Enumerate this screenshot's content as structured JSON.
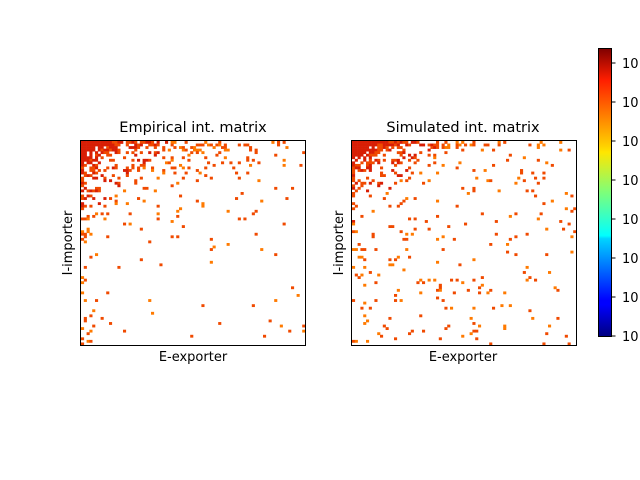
{
  "chart_data": [
    {
      "type": "heatmap",
      "title": "Empirical int. matrix",
      "xlabel": "E-exporter",
      "ylabel": "I-importer",
      "x_ticks": "none",
      "y_ticks": "none",
      "rows": 80,
      "cols": 80,
      "empty_cells": "white",
      "structure": "nested; dense top-left corner, density decays with row and column rank",
      "density_model": {
        "top_left": 0.97,
        "row_scale": 2.6,
        "col_scale": 2.6,
        "background": 0.01
      }
    },
    {
      "type": "heatmap",
      "title": "Simulated int. matrix",
      "xlabel": "E-exporter",
      "ylabel": "I-importer",
      "x_ticks": "none",
      "y_ticks": "none",
      "rows": 80,
      "cols": 80,
      "empty_cells": "white",
      "structure": "nested; dense top-left corner, broader scatter than empirical",
      "density_model": {
        "top_left": 0.95,
        "row_scale": 3.4,
        "col_scale": 3.4,
        "background": 0.03
      }
    }
  ],
  "colorbar": {
    "colormap": "jet",
    "scale": "log",
    "tick_labels": [
      "10",
      "10",
      "10",
      "10",
      "10",
      "10",
      "10",
      "10"
    ],
    "note": "exponent superscripts clipped at right edge of image"
  },
  "colors": {
    "cell_high": "#d81e05",
    "cell_mid": "#f04a00",
    "cell_low": "#ff7a00"
  }
}
